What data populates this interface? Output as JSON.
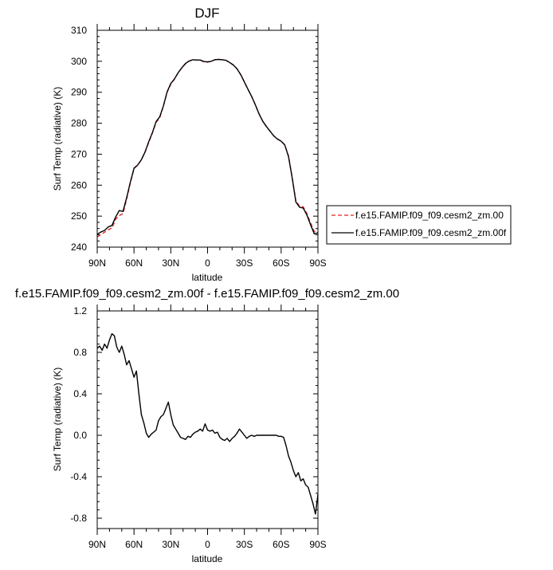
{
  "chart_data": [
    {
      "type": "line",
      "title": "DJF",
      "xlabel": "latitude",
      "ylabel": "Surf Temp (radiative) (K)",
      "xlim": [
        90,
        -90
      ],
      "ylim": [
        240,
        310
      ],
      "x_ticks": [
        90,
        60,
        30,
        0,
        -30,
        -60,
        -90
      ],
      "x_tick_labels": [
        "90N",
        "60N",
        "30N",
        "0",
        "30S",
        "60S",
        "90S"
      ],
      "y_ticks": [
        240,
        250,
        260,
        270,
        280,
        290,
        300,
        310
      ],
      "y_tick_labels": [
        "240",
        "250",
        "260",
        "270",
        "280",
        "290",
        "300",
        "310"
      ],
      "x": [
        90,
        87,
        84,
        81,
        78,
        75,
        72,
        69,
        66,
        63,
        60,
        57,
        54,
        51,
        48,
        45,
        42,
        39,
        36,
        33,
        30,
        27,
        24,
        21,
        18,
        15,
        12,
        9,
        6,
        3,
        0,
        -3,
        -6,
        -9,
        -12,
        -15,
        -18,
        -21,
        -24,
        -27,
        -30,
        -33,
        -36,
        -39,
        -42,
        -45,
        -48,
        -51,
        -54,
        -57,
        -60,
        -63,
        -66,
        -69,
        -72,
        -75,
        -78,
        -81,
        -84,
        -87,
        -90
      ],
      "series": [
        {
          "name": "f.e15.FAMIP.f09_f09.cesm2_zm.00",
          "color": "#e8201e",
          "dash": "dashed",
          "values": [
            243.3,
            244.1,
            244.8,
            245.6,
            246.2,
            249.0,
            250.2,
            250.8,
            255.5,
            260.8,
            265.3,
            266.5,
            268.2,
            270.6,
            273.8,
            276.9,
            280.3,
            281.8,
            285.6,
            290.0,
            292.6,
            294.2,
            296.3,
            297.9,
            299.2,
            300.1,
            300.4,
            300.4,
            300.4,
            299.8,
            299.7,
            300.0,
            300.5,
            300.6,
            300.5,
            300.3,
            299.6,
            298.8,
            297.6,
            295.7,
            293.3,
            290.9,
            288.6,
            285.9,
            283.0,
            280.6,
            278.9,
            277.4,
            275.9,
            274.9,
            274.2,
            273.0,
            269.4,
            262.5,
            254.9,
            253.2,
            253.0,
            250.8,
            247.8,
            245.0,
            245.3
          ]
        },
        {
          "name": "f.e15.FAMIP.f09_f09.cesm2_zm.00f",
          "color": "#000000",
          "dash": "solid",
          "values": [
            244.1,
            244.9,
            245.4,
            246.5,
            247.0,
            249.7,
            251.8,
            251.5,
            255.9,
            261.0,
            265.5,
            266.5,
            268.2,
            270.7,
            274.0,
            277.0,
            280.5,
            282.1,
            285.6,
            290.1,
            292.8,
            294.3,
            296.3,
            297.9,
            299.3,
            300.1,
            300.5,
            300.4,
            300.4,
            299.9,
            299.8,
            300.0,
            300.5,
            300.6,
            300.5,
            300.3,
            299.6,
            298.8,
            297.6,
            295.7,
            293.3,
            290.9,
            288.6,
            285.9,
            283.0,
            280.6,
            278.9,
            277.4,
            275.9,
            274.9,
            274.2,
            273.0,
            269.2,
            262.3,
            254.6,
            252.9,
            252.6,
            250.4,
            247.2,
            244.3,
            244.6
          ]
        }
      ],
      "legend": {
        "position": "right",
        "entries": [
          "f.e15.FAMIP.f09_f09.cesm2_zm.00",
          "f.e15.FAMIP.f09_f09.cesm2_zm.00f"
        ]
      }
    },
    {
      "type": "line",
      "title": "f.e15.FAMIP.f09_f09.cesm2_zm.00f - f.e15.FAMIP.f09_f09.cesm2_zm.00",
      "xlabel": "latitude",
      "ylabel": "Surf Temp (radiative) (K)",
      "xlim": [
        90,
        -90
      ],
      "ylim": [
        -0.9,
        1.2
      ],
      "x_ticks": [
        90,
        60,
        30,
        0,
        -30,
        -60,
        -90
      ],
      "x_tick_labels": [
        "90N",
        "60N",
        "30N",
        "0",
        "30S",
        "60S",
        "90S"
      ],
      "y_ticks": [
        -0.8,
        -0.4,
        0.0,
        0.4,
        0.8,
        1.2
      ],
      "y_tick_labels": [
        "-0.8",
        "-0.4",
        "0.0",
        "0.4",
        "0.8",
        "1.2"
      ],
      "x": [
        90,
        88,
        86,
        84,
        82,
        80,
        78,
        76,
        74,
        72,
        70,
        68,
        66,
        64,
        62,
        60,
        58,
        56,
        54,
        52,
        50,
        48,
        46,
        44,
        42,
        40,
        38,
        36,
        34,
        32,
        30,
        28,
        26,
        24,
        22,
        20,
        18,
        16,
        14,
        12,
        10,
        8,
        6,
        4,
        2,
        0,
        -2,
        -4,
        -6,
        -8,
        -10,
        -12,
        -14,
        -16,
        -18,
        -20,
        -22,
        -24,
        -26,
        -28,
        -30,
        -32,
        -34,
        -36,
        -38,
        -40,
        -42,
        -44,
        -46,
        -48,
        -50,
        -52,
        -54,
        -56,
        -58,
        -60,
        -62,
        -64,
        -66,
        -68,
        -70,
        -72,
        -74,
        -76,
        -78,
        -80,
        -82,
        -84,
        -86,
        -88,
        -90
      ],
      "series": [
        {
          "name": "f.e15.FAMIP.f09_f09.cesm2_zm.00f - f.e15.FAMIP.f09_f09.cesm2_zm.00",
          "color": "#000000",
          "dash": "solid",
          "values": [
            0.84,
            0.86,
            0.82,
            0.88,
            0.84,
            0.92,
            0.98,
            0.96,
            0.85,
            0.8,
            0.86,
            0.78,
            0.68,
            0.72,
            0.64,
            0.56,
            0.62,
            0.4,
            0.2,
            0.12,
            0.02,
            -0.02,
            0.01,
            0.03,
            0.05,
            0.14,
            0.18,
            0.2,
            0.26,
            0.32,
            0.2,
            0.1,
            0.06,
            0.02,
            -0.02,
            -0.03,
            -0.04,
            -0.01,
            -0.02,
            0.01,
            0.03,
            0.04,
            0.06,
            0.04,
            0.11,
            0.05,
            0.04,
            0.05,
            0.02,
            0.03,
            -0.02,
            -0.04,
            -0.05,
            -0.03,
            -0.06,
            -0.03,
            -0.01,
            0.02,
            0.06,
            0.03,
            0.0,
            -0.03,
            -0.01,
            0.0,
            -0.01,
            0.0,
            0.0,
            0.0,
            0.0,
            0.0,
            0.0,
            0.0,
            0.0,
            0.0,
            -0.01,
            -0.01,
            -0.02,
            -0.1,
            -0.2,
            -0.26,
            -0.34,
            -0.4,
            -0.36,
            -0.44,
            -0.42,
            -0.48,
            -0.5,
            -0.58,
            -0.66,
            -0.76,
            -0.57
          ]
        }
      ]
    }
  ]
}
